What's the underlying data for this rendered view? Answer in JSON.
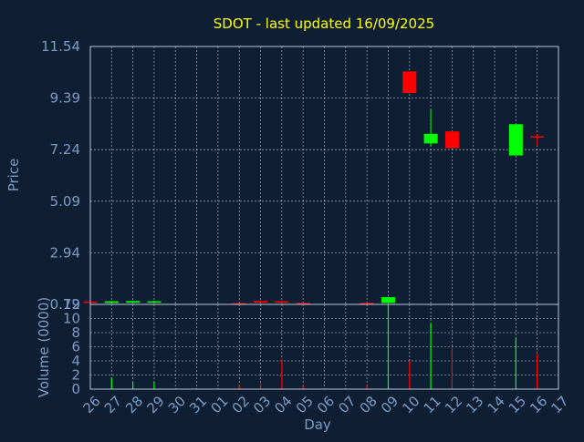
{
  "title": "SDOT - last updated 16/09/2025",
  "colors": {
    "background": "#0f1f33",
    "title": "#ffff00",
    "axis_text": "#7a9cc4",
    "up": "#00ff00",
    "down": "#ff0000",
    "frame": "#b9c8da",
    "grid": "#b9c8da"
  },
  "chart_data": [
    {
      "type": "candlestick",
      "ylabel": "Price",
      "ylim": [
        0.79,
        11.54
      ],
      "yticks": [
        "11.54",
        "9.39",
        "7.24",
        "5.09",
        "2.94",
        "0.79"
      ],
      "x": [
        "26",
        "27",
        "28",
        "29",
        "30",
        "31",
        "01",
        "02",
        "03",
        "04",
        "05",
        "06",
        "07",
        "08",
        "09",
        "10",
        "11",
        "12",
        "13",
        "14",
        "15",
        "16",
        "17"
      ],
      "grid": true,
      "candles": [
        {
          "x": "26",
          "open": 0.91,
          "close": 0.85,
          "high": 0.93,
          "low": 0.83
        },
        {
          "x": "27",
          "open": 0.85,
          "close": 0.92,
          "high": 0.94,
          "low": 0.84
        },
        {
          "x": "28",
          "open": 0.86,
          "close": 0.93,
          "high": 0.95,
          "low": 0.85
        },
        {
          "x": "29",
          "open": 0.86,
          "close": 0.92,
          "high": 0.94,
          "low": 0.85
        },
        {
          "x": "02",
          "open": 0.84,
          "close": 0.79,
          "high": 0.86,
          "low": 0.77
        },
        {
          "x": "03",
          "open": 0.93,
          "close": 0.86,
          "high": 0.95,
          "low": 0.85
        },
        {
          "x": "04",
          "open": 0.92,
          "close": 0.86,
          "high": 0.94,
          "low": 0.85
        },
        {
          "x": "05",
          "open": 0.85,
          "close": 0.8,
          "high": 0.87,
          "low": 0.78
        },
        {
          "x": "08",
          "open": 0.85,
          "close": 0.79,
          "high": 0.87,
          "low": 0.77
        },
        {
          "x": "09",
          "open": 0.85,
          "close": 1.09,
          "high": 1.1,
          "low": 0.83
        },
        {
          "x": "10",
          "open": 10.5,
          "close": 9.6,
          "high": 10.5,
          "low": 9.6
        },
        {
          "x": "11",
          "open": 7.5,
          "close": 7.9,
          "high": 8.9,
          "low": 7.4
        },
        {
          "x": "12",
          "open": 8.0,
          "close": 7.3,
          "high": 8.0,
          "low": 7.3
        },
        {
          "x": "15",
          "open": 7.0,
          "close": 8.3,
          "high": 8.3,
          "low": 7.0
        },
        {
          "x": "16",
          "open": 7.8,
          "close": 7.75,
          "high": 7.9,
          "low": 7.4
        }
      ]
    },
    {
      "type": "bar",
      "ylabel": "Volume (0000)",
      "xlabel": "Day",
      "ylim": [
        0,
        12
      ],
      "yticks": [
        "0",
        "2",
        "4",
        "6",
        "8",
        "10",
        "12"
      ],
      "x": [
        "26",
        "27",
        "28",
        "29",
        "30",
        "31",
        "01",
        "02",
        "03",
        "04",
        "05",
        "06",
        "07",
        "08",
        "09",
        "10",
        "11",
        "12",
        "13",
        "14",
        "15",
        "16",
        "17"
      ],
      "grid": true,
      "bars": [
        {
          "x": "27",
          "value": 1.6,
          "dir": "up"
        },
        {
          "x": "28",
          "value": 1.0,
          "dir": "up"
        },
        {
          "x": "29",
          "value": 1.0,
          "dir": "up"
        },
        {
          "x": "02",
          "value": 0.5,
          "dir": "down"
        },
        {
          "x": "03",
          "value": 1.0,
          "dir": "down"
        },
        {
          "x": "04",
          "value": 4.2,
          "dir": "down"
        },
        {
          "x": "05",
          "value": 0.5,
          "dir": "down"
        },
        {
          "x": "08",
          "value": 0.5,
          "dir": "down"
        },
        {
          "x": "09",
          "value": 12.0,
          "dir": "up"
        },
        {
          "x": "10",
          "value": 4.0,
          "dir": "down"
        },
        {
          "x": "11",
          "value": 9.4,
          "dir": "up"
        },
        {
          "x": "12",
          "value": 5.9,
          "dir": "down"
        },
        {
          "x": "15",
          "value": 7.3,
          "dir": "up"
        },
        {
          "x": "16",
          "value": 5.0,
          "dir": "down"
        }
      ]
    }
  ]
}
